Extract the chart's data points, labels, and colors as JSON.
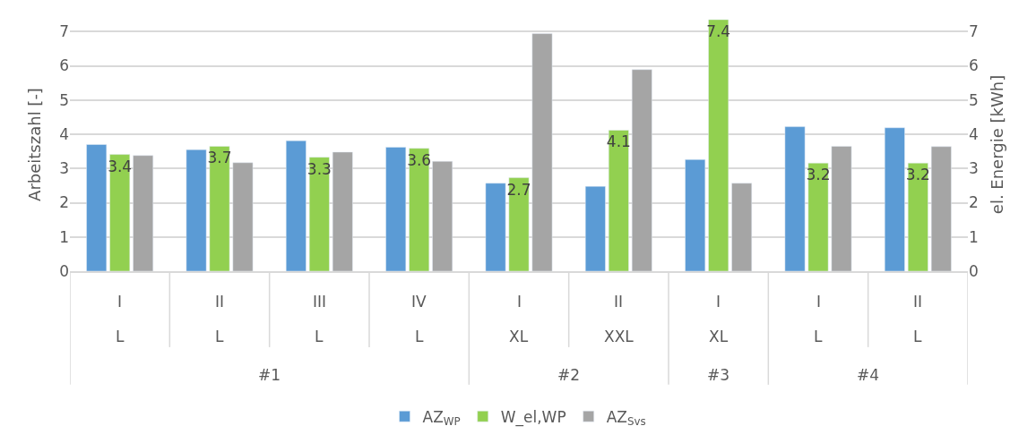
{
  "chart_data": {
    "type": "bar",
    "categories": [
      [
        "I",
        "L",
        "#1"
      ],
      [
        "II",
        "L",
        null
      ],
      [
        "III",
        "L",
        null
      ],
      [
        "IV",
        "L",
        null
      ],
      [
        "I",
        "XL",
        "#2"
      ],
      [
        "II",
        "XXL",
        null
      ],
      [
        "I",
        "XL",
        "#3"
      ],
      [
        "I",
        "L",
        "#4"
      ],
      [
        "II",
        "L",
        null
      ]
    ],
    "series": [
      {
        "name": "AZ$_{WP}$",
        "color": "#5b9bd5",
        "values": [
          3.7,
          3.55,
          3.81,
          3.62,
          2.57,
          2.48,
          3.26,
          4.22,
          4.19
        ]
      },
      {
        "name": "W_el,WP",
        "color": "#92d050",
        "axis": "y2",
        "values": [
          3.41,
          3.65,
          3.33,
          3.59,
          2.73,
          4.12,
          7.35,
          3.16,
          3.16
        ],
        "value_labels": [
          "3.4",
          "3.7",
          "3.3",
          "3.6",
          "2.7",
          "4.1",
          "7.4",
          "3.2",
          "3.2"
        ]
      },
      {
        "name": "AZ$_{Svs}$",
        "color": "#a5a5a5",
        "values": [
          3.38,
          3.17,
          3.48,
          3.21,
          6.94,
          5.89,
          2.57,
          3.65,
          3.64
        ]
      }
    ],
    "ylabel": "Arbeitszahl [-]",
    "y2label": "el. Energie [kWh]",
    "ylim": [
      0,
      7.4
    ],
    "yticks": [
      0,
      1,
      2,
      3,
      4,
      5,
      6,
      7
    ],
    "y2lim": [
      0,
      7.4
    ],
    "y2ticks": [
      0,
      1,
      2,
      3,
      4,
      5,
      6,
      7
    ],
    "grid": "y",
    "legend": "bottom"
  }
}
